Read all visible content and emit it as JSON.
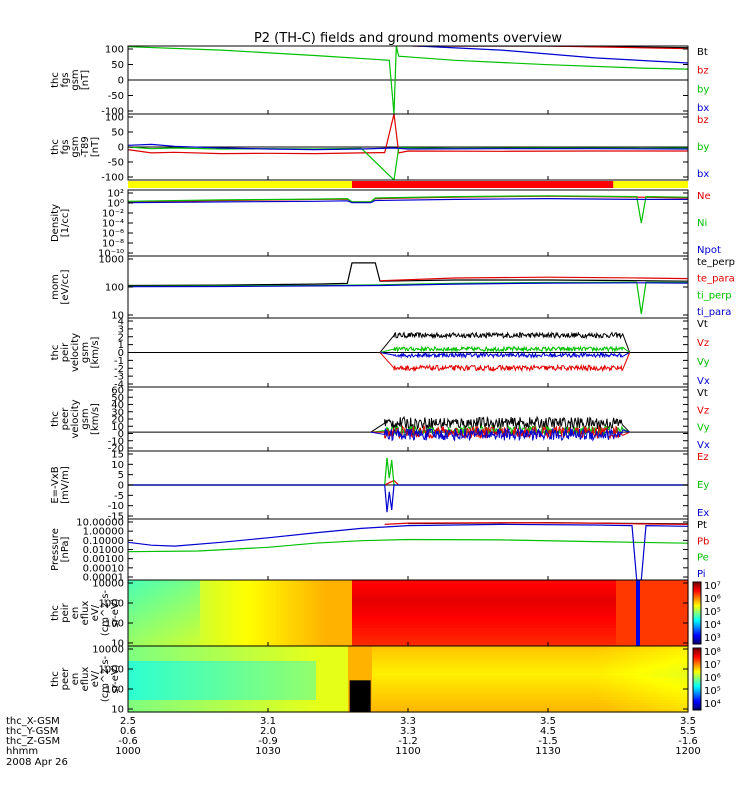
{
  "chart_data": {
    "type": "line",
    "title": "P2 (TH-C) fields and ground moments overview",
    "time_axis": {
      "tick_labels": {
        "thc_X-GSM": [
          "2.5",
          "3.1",
          "3.3",
          "3.5",
          "3.5"
        ],
        "thc_Y-GSM": [
          "0.6",
          "2.0",
          "3.3",
          "4.5",
          "5.5"
        ],
        "thc_Z-GSM": [
          "-0.6",
          "-0.9",
          "-1.2",
          "-1.5",
          "-1.6"
        ],
        "hhmm": [
          "1000",
          "1030",
          "1100",
          "1130",
          "1200"
        ]
      },
      "row_labels": [
        "thc_X-GSM",
        "thc_Y-GSM",
        "thc_Z-GSM",
        "hhmm",
        "2008 Apr 26"
      ]
    },
    "panels": [
      {
        "id": "fgs",
        "ylabel": [
          "thc",
          "fgs",
          "gsm",
          "[nT]"
        ],
        "ylim": [
          -100,
          100
        ],
        "yticks": [
          "100",
          "50",
          "0",
          "-50",
          "-100"
        ],
        "legend": [
          {
            "name": "Bt",
            "color": "#000000"
          },
          {
            "name": "bz",
            "color": "#e00000"
          },
          {
            "name": "by",
            "color": "#00c000"
          },
          {
            "name": "bx",
            "color": "#0000d0"
          }
        ],
        "series": [
          {
            "name": "Bt",
            "x": [
              0,
              30,
              60,
              61,
              90,
              120
            ],
            "y": [
              null,
              null,
              null,
              100,
              100,
              95
            ]
          },
          {
            "name": "bz",
            "x": [
              0,
              30,
              60,
              61,
              90,
              120
            ],
            "y": [
              null,
              null,
              null,
              100,
              100,
              92
            ]
          },
          {
            "name": "by",
            "x": [
              0,
              20,
              40,
              56,
              57,
              57.5,
              58,
              70,
              90,
              110,
              120
            ],
            "y": [
              98,
              88,
              72,
              58,
              -100,
              100,
              70,
              58,
              45,
              35,
              32
            ]
          },
          {
            "name": "bx",
            "x": [
              0,
              40,
              61,
              62,
              80,
              100,
              120
            ],
            "y": [
              null,
              null,
              null,
              100,
              88,
              65,
              50
            ]
          }
        ]
      },
      {
        "id": "fgs-t89",
        "ylabel": [
          "thc",
          "fgs",
          "gsm",
          "-T89",
          "[nT]"
        ],
        "ylim": [
          -100,
          100
        ],
        "yticks": [
          "100",
          "50",
          "0",
          "-50",
          "-100"
        ],
        "legend": [
          {
            "name": "bz",
            "color": "#e00000"
          },
          {
            "name": "by",
            "color": "#00c000"
          },
          {
            "name": "bx",
            "color": "#0000d0"
          }
        ],
        "series": [
          {
            "name": "bz",
            "x": [
              0,
              5,
              10,
              20,
              30,
              40,
              50,
              55,
              57,
              58,
              60,
              80,
              100,
              120
            ],
            "y": [
              -8,
              -18,
              -16,
              -20,
              -19,
              -20,
              -18,
              -17,
              100,
              -18,
              -12,
              -13,
              -12,
              -12
            ]
          },
          {
            "name": "by",
            "x": [
              0,
              5,
              10,
              20,
              30,
              40,
              50,
              57,
              58,
              70,
              90,
              110,
              120
            ],
            "y": [
              0,
              -5,
              -3,
              -6,
              -5,
              -6,
              -4,
              -100,
              -2,
              -4,
              -3,
              -4,
              -3
            ]
          },
          {
            "name": "bx",
            "x": [
              0,
              5,
              10,
              20,
              30,
              40,
              50,
              57,
              60,
              80,
              100,
              120
            ],
            "y": [
              5,
              8,
              2,
              -3,
              -6,
              -8,
              -6,
              -3,
              -6,
              -5,
              -5,
              -6
            ]
          }
        ]
      },
      {
        "id": "density",
        "ylabel": [
          "Density",
          "[1/cc]"
        ],
        "yscale": "log",
        "ylim": [
          1e-12,
          100
        ],
        "yticks": [
          "10²",
          "10⁰",
          "10⁻²",
          "10⁻⁴",
          "10⁻⁶",
          "10⁻⁸",
          "10⁻¹⁰"
        ],
        "legend": [
          {
            "name": "Ne",
            "color": "#e00000"
          },
          {
            "name": "Ni",
            "color": "#00c000"
          },
          {
            "name": "Npot",
            "color": "#0000d0"
          }
        ],
        "series": [
          {
            "name": "Ne",
            "x": [
              0,
              20,
              40,
              47,
              48,
              52,
              53,
              70,
              90,
              110,
              120
            ],
            "y": [
              0.3,
              0.6,
              1.0,
              1.2,
              0.3,
              0.3,
              1.5,
              3,
              5,
              3,
              2
            ]
          },
          {
            "name": "Ni",
            "x": [
              0,
              20,
              40,
              47,
              48,
              52,
              53,
              70,
              90,
              109,
              110,
              111,
              120
            ],
            "y": [
              0.4,
              0.8,
              1.2,
              1.5,
              0.3,
              0.3,
              2,
              4,
              6,
              4,
              1e-05,
              4,
              3
            ]
          },
          {
            "name": "Npot",
            "x": [
              0,
              20,
              40,
              47,
              48,
              52,
              53,
              70,
              90,
              110,
              120
            ],
            "y": [
              0.2,
              0.3,
              0.4,
              0.5,
              0.2,
              0.2,
              0.6,
              1,
              1.5,
              1,
              1
            ]
          }
        ]
      },
      {
        "id": "temperature",
        "ylabel": [
          "mom",
          "[eV/cc]"
        ],
        "yscale": "log",
        "ylim": [
          10,
          5000
        ],
        "yticks": [
          "1000",
          "100",
          "10"
        ],
        "legend": [
          {
            "name": "te_perp",
            "color": "#000000"
          },
          {
            "name": "te_para",
            "color": "#e00000"
          },
          {
            "name": "ti_perp",
            "color": "#00c000"
          },
          {
            "name": "ti_para",
            "color": "#0000d0"
          }
        ],
        "series": [
          {
            "name": "te_perp",
            "x": [
              0,
              20,
              40,
              47,
              48,
              53,
              54,
              70,
              90,
              110,
              120
            ],
            "y": [
              260,
              270,
              300,
              320,
              2500,
              2500,
              400,
              450,
              450,
              420,
              400
            ]
          },
          {
            "name": "te_para",
            "x": [
              0,
              20,
              40,
              54,
              70,
              90,
              110,
              120
            ],
            "y": [
              null,
              null,
              null,
              420,
              550,
              600,
              550,
              520
            ]
          },
          {
            "name": "ti_perp",
            "x": [
              0,
              20,
              40,
              54,
              70,
              90,
              109,
              110,
              111,
              120
            ],
            "y": [
              240,
              250,
              260,
              280,
              320,
              350,
              360,
              15,
              360,
              350
            ]
          },
          {
            "name": "ti_para",
            "x": [
              0,
              20,
              40,
              54,
              70,
              90,
              110,
              120
            ],
            "y": [
              230,
              235,
              250,
              260,
              300,
              330,
              340,
              330
            ]
          }
        ]
      },
      {
        "id": "peir-velocity",
        "ylabel": [
          "thc",
          "peir",
          "velocity",
          "gsm",
          "[km/s]"
        ],
        "ylim": [
          -4,
          4
        ],
        "yticks": [
          "4",
          "3",
          "2",
          "1",
          "0",
          "-1",
          "-2",
          "-3",
          "-4"
        ],
        "legend": [
          {
            "name": "Vt",
            "color": "#000000"
          },
          {
            "name": "Vz",
            "color": "#e00000"
          },
          {
            "name": "Vy",
            "color": "#00c000"
          },
          {
            "name": "Vx",
            "color": "#0000d0"
          }
        ],
        "noisy_band": {
          "x_start": 57,
          "x_end": 106
        },
        "series": [
          {
            "name": "Vt",
            "level": 2.0,
            "noise": 0.3
          },
          {
            "name": "Vy",
            "level": 0.4,
            "noise": 0.25
          },
          {
            "name": "Vx",
            "level": -0.3,
            "noise": 0.25
          },
          {
            "name": "Vz",
            "level": -1.8,
            "noise": 0.3
          }
        ]
      },
      {
        "id": "peer-velocity",
        "ylabel": [
          "thc",
          "peer",
          "velocity",
          "gsm",
          "[km/s]"
        ],
        "ylim": [
          -25,
          60
        ],
        "yticks": [
          "60",
          "50",
          "40",
          "30",
          "20",
          "10",
          "0",
          "-10",
          "-20"
        ],
        "legend": [
          {
            "name": "Vt",
            "color": "#000000"
          },
          {
            "name": "Vz",
            "color": "#e00000"
          },
          {
            "name": "Vy",
            "color": "#00c000"
          },
          {
            "name": "Vx",
            "color": "#0000d0"
          }
        ],
        "noisy_band": {
          "x_start": 55,
          "x_end": 106
        },
        "series": [
          {
            "name": "Vt",
            "level": 12,
            "noise": 8
          },
          {
            "name": "Vy",
            "level": 2,
            "noise": 6
          },
          {
            "name": "Vz",
            "level": 0,
            "noise": 8
          },
          {
            "name": "Vx",
            "level": -3,
            "noise": 8
          }
        ]
      },
      {
        "id": "efield",
        "ylabel": [
          "E=-VxB",
          "[mV/m]"
        ],
        "ylim": [
          -15,
          15
        ],
        "yticks": [
          "15",
          "10",
          "5",
          "0",
          "-5",
          "-10",
          "-15"
        ],
        "legend": [
          {
            "name": "Ez",
            "color": "#e00000"
          },
          {
            "name": "Ey",
            "color": "#00c000"
          },
          {
            "name": "Ex",
            "color": "#0000d0"
          }
        ],
        "series": [
          {
            "name": "Ez",
            "x": [
              0,
              55,
              56,
              57,
              58,
              120
            ],
            "y": [
              0,
              0,
              1,
              2,
              0,
              0
            ]
          },
          {
            "name": "Ey",
            "x": [
              0,
              55,
              55.5,
              56,
              56.5,
              57,
              120
            ],
            "y": [
              0,
              0,
              12,
              3,
              11,
              0,
              0
            ]
          },
          {
            "name": "Ex",
            "x": [
              0,
              55,
              55.5,
              56,
              56.5,
              57,
              120
            ],
            "y": [
              0,
              0,
              -12,
              -3,
              -11,
              0,
              0
            ]
          }
        ]
      },
      {
        "id": "pressure",
        "ylabel": [
          "Pressure",
          "[nPa]"
        ],
        "yscale": "log",
        "ylim": [
          1e-05,
          30
        ],
        "yticks": [
          "10.00000",
          "1.00000",
          "0.10000",
          "0.01000",
          "0.00100",
          "0.00010",
          "0.00001"
        ],
        "legend": [
          {
            "name": "Pt",
            "color": "#000000"
          },
          {
            "name": "Pb",
            "color": "#e00000"
          },
          {
            "name": "Pe",
            "color": "#00c000"
          },
          {
            "name": "Pi",
            "color": "#0000d0"
          }
        ],
        "series": [
          {
            "name": "Pt",
            "x": [
              0,
              30,
              60,
              90,
              110,
              120
            ],
            "y": [
              null,
              null,
              10,
              12,
              10,
              9
            ]
          },
          {
            "name": "Pb",
            "x": [
              0,
              30,
              55,
              60,
              80,
              100,
              110,
              120
            ],
            "y": [
              null,
              null,
              8,
              11,
              12,
              11,
              9,
              8
            ]
          },
          {
            "name": "Pe",
            "x": [
              0,
              15,
              30,
              40,
              50,
              60,
              80,
              100,
              120
            ],
            "y": [
              0.01,
              0.012,
              0.03,
              0.08,
              0.15,
              0.2,
              0.18,
              0.12,
              0.08
            ]
          },
          {
            "name": "Pi",
            "x": [
              0,
              5,
              10,
              20,
              30,
              40,
              50,
              60,
              80,
              100,
              108,
              109,
              110,
              111,
              120
            ],
            "y": [
              0.1,
              0.05,
              0.04,
              0.1,
              0.3,
              1,
              3,
              6,
              8,
              7,
              6,
              1e-05,
              1e-05,
              6,
              5
            ]
          }
        ]
      },
      {
        "id": "peir-spectrogram",
        "type": "heatmap",
        "ylabel": [
          "thc",
          "peir",
          "en",
          "eflux",
          "eV/",
          "(cm^2-s-",
          "sr-eV)"
        ],
        "yscale": "log",
        "ylim": [
          5,
          30000
        ],
        "yticks": [
          "10000",
          "1000",
          "100",
          "10"
        ],
        "colorbar_ticks": [
          "10⁷",
          "10⁶",
          "10⁵",
          "10⁴",
          "10³"
        ]
      },
      {
        "id": "peer-spectrogram",
        "type": "heatmap",
        "ylabel": [
          "thc",
          "peer",
          "en",
          "eflux",
          "eV/",
          "(cm^2-s-",
          "sr-eV)"
        ],
        "yscale": "log",
        "ylim": [
          5,
          30000
        ],
        "yticks": [
          "10000",
          "1000",
          "100",
          "10"
        ],
        "colorbar_ticks": [
          "10⁸",
          "10⁷",
          "10⁶",
          "10⁵",
          "10⁴"
        ]
      }
    ],
    "mode_bar": [
      {
        "from": 0,
        "to": 48,
        "color": "#ffff00"
      },
      {
        "from": 48,
        "to": 104,
        "color": "#ff0000"
      },
      {
        "from": 104,
        "to": 120,
        "color": "#ffff00"
      }
    ]
  }
}
